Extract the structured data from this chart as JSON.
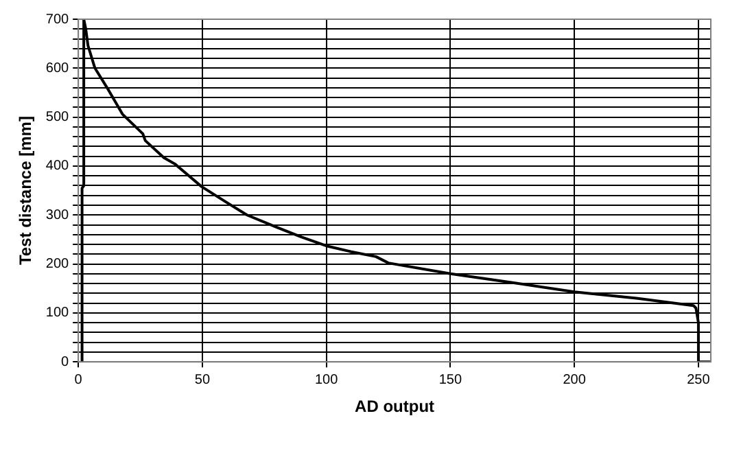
{
  "chart_data": {
    "type": "line",
    "xlabel": "AD output",
    "ylabel": "Test distance [mm]",
    "xlim": [
      0,
      255
    ],
    "ylim": [
      0,
      700
    ],
    "xticks": [
      0,
      50,
      100,
      150,
      200,
      250
    ],
    "yticks": [
      0,
      {
        "value": 20,
        "label": null
      },
      {
        "value": 40,
        "label": null
      },
      {
        "value": 60,
        "label": null
      },
      {
        "value": 80,
        "label": null
      },
      100,
      {
        "value": 120,
        "label": null
      },
      {
        "value": 140,
        "label": null
      },
      {
        "value": 160,
        "label": null
      },
      {
        "value": 180,
        "label": null
      },
      200,
      {
        "value": 220,
        "label": null
      },
      {
        "value": 240,
        "label": null
      },
      {
        "value": 260,
        "label": null
      },
      {
        "value": 280,
        "label": null
      },
      300,
      {
        "value": 320,
        "label": null
      },
      {
        "value": 340,
        "label": null
      },
      {
        "value": 360,
        "label": null
      },
      {
        "value": 380,
        "label": null
      },
      400,
      {
        "value": 420,
        "label": null
      },
      {
        "value": 440,
        "label": null
      },
      {
        "value": 460,
        "label": null
      },
      {
        "value": 480,
        "label": null
      },
      500,
      {
        "value": 520,
        "label": null
      },
      {
        "value": 540,
        "label": null
      },
      {
        "value": 560,
        "label": null
      },
      {
        "value": 580,
        "label": null
      },
      600,
      {
        "value": 620,
        "label": null
      },
      {
        "value": 640,
        "label": null
      },
      {
        "value": 660,
        "label": null
      },
      {
        "value": 680,
        "label": null
      },
      700
    ],
    "grid": true,
    "legend": false,
    "marker": "none",
    "line_style": "solid",
    "series": [
      {
        "color": "#000000",
        "x": [
          1.5,
          1.5,
          2.2,
          2.2,
          3,
          3.9,
          6.7,
          12.2,
          17.8,
          26,
          27,
          34.5,
          39,
          49.7,
          60,
          68,
          80,
          90,
          100,
          110,
          120,
          125,
          150,
          175,
          200,
          225,
          248,
          249,
          250,
          250,
          255
        ],
        "values": [
          0,
          355,
          360,
          700,
          680,
          646,
          600,
          555,
          506,
          466,
          452,
          417,
          404,
          358,
          325,
          300,
          275,
          255,
          237,
          225,
          215,
          202,
          180,
          162,
          143,
          130,
          115,
          110,
          80,
          0,
          0
        ]
      }
    ]
  }
}
